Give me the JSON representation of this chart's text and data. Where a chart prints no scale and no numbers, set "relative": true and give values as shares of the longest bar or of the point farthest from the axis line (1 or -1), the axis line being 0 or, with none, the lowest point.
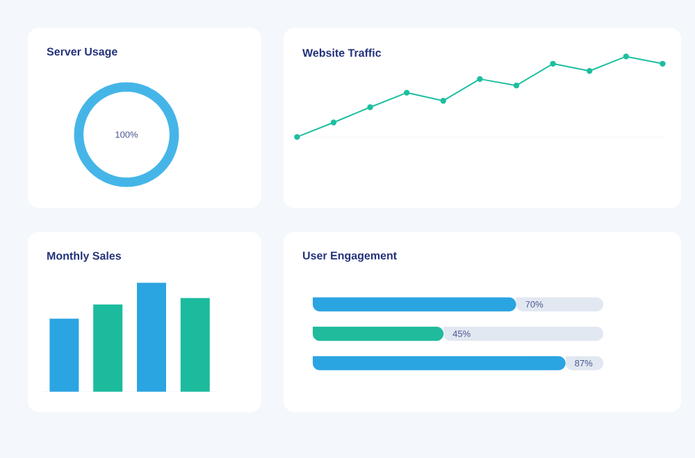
{
  "chart_data": [
    {
      "type": "donut",
      "title": "Server Usage",
      "categories": [
        null
      ],
      "values": [
        100
      ],
      "colors": [
        "#45b5e8"
      ],
      "value_labels": [
        "100%"
      ]
    },
    {
      "type": "line",
      "title": "Website Traffic",
      "relative": true,
      "categories": [
        null,
        null,
        null,
        null,
        null,
        null,
        null,
        null,
        null,
        null,
        null
      ],
      "values": [
        0,
        0.18,
        0.37,
        0.55,
        0.45,
        0.72,
        0.64,
        0.91,
        0.82,
        1,
        0.91
      ],
      "color": "#1dbf9f",
      "marker": "circle"
    },
    {
      "type": "bar",
      "title": "Monthly Sales",
      "relative": true,
      "categories": [
        null,
        null,
        null,
        null
      ],
      "values": [
        0.67,
        0.8,
        1,
        0.86
      ],
      "colors": [
        "#2ba4e2",
        "#1cbb9d",
        "#2ba4e2",
        "#1cbb9d"
      ]
    },
    {
      "type": "bar",
      "title": "User Engagement",
      "orientation": "horizontal",
      "stacked": true,
      "categories": [
        null,
        null,
        null
      ],
      "xlim": [
        0,
        100
      ],
      "tick_labels": false,
      "series": [
        {
          "colors": [
            "#2ba4e2",
            "#20bb9c",
            "#2ba4e2"
          ],
          "values": [
            70,
            45,
            87
          ],
          "value_labels": [
            "70%",
            "45%",
            "87%"
          ]
        },
        {
          "color": "#e2e8f1",
          "values": [
            30,
            55,
            13
          ]
        }
      ]
    }
  ]
}
